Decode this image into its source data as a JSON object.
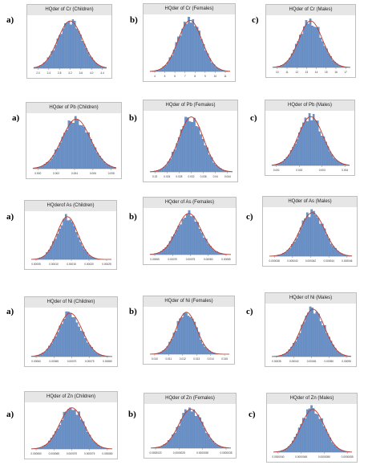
{
  "chart_data": [
    {
      "letter": "a)",
      "title": "HQder of Cr (Children)",
      "type": "bar",
      "ticks": [
        "2.0",
        "2.4",
        "2.8",
        "3.2",
        "3.6",
        "4.0",
        "4.4"
      ],
      "peak": 0.5,
      "spread": 0.17
    },
    {
      "letter": "b)",
      "title": "HQder of Cr (Females)",
      "type": "bar",
      "ticks": [
        "4",
        "5",
        "6",
        "7",
        "8",
        "9",
        "10",
        "11"
      ],
      "peak": 0.5,
      "spread": 0.15
    },
    {
      "letter": "c)",
      "title": "HQder of Cr (Males)",
      "type": "bar",
      "ticks": [
        "10",
        "11",
        "12",
        "13",
        "14",
        "15",
        "16",
        "17"
      ],
      "peak": 0.49,
      "spread": 0.15
    },
    {
      "letter": "a)",
      "title": "HQder of Pb (Children)",
      "type": "bar",
      "ticks": [
        "0.000",
        "0.002",
        "0.004",
        "0.006",
        "0.008"
      ],
      "peak": 0.52,
      "spread": 0.17
    },
    {
      "letter": "b)",
      "title": "HQder of Pb (Females)",
      "type": "bar",
      "ticks": [
        "0.02",
        "0.024",
        "0.028",
        "0.032",
        "0.036",
        "0.04",
        "0.044"
      ],
      "peak": 0.5,
      "spread": 0.15
    },
    {
      "letter": "c)",
      "title": "HQder of Pb (Males)",
      "type": "bar",
      "ticks": [
        "0.001",
        "0.002",
        "0.003",
        "0.004"
      ],
      "peak": 0.5,
      "spread": 0.16
    },
    {
      "letter": "a)",
      "title": "HQderof As (Children)",
      "type": "bar",
      "ticks": [
        "0.00005",
        "0.00010",
        "0.00015",
        "0.00020",
        "0.00025"
      ],
      "peak": 0.45,
      "spread": 0.13
    },
    {
      "letter": "b)",
      "title": "HQder of As (Females)",
      "type": "bar",
      "ticks": [
        "0.00065",
        "0.00070",
        "0.00075",
        "0.00080",
        "0.00085"
      ],
      "peak": 0.48,
      "spread": 0.15
    },
    {
      "letter": "c)",
      "title": "HQder of As (Males)",
      "type": "bar",
      "ticks": [
        "0.000038",
        "0.000040",
        "0.000042",
        "0.000044",
        "0.000046"
      ],
      "peak": 0.52,
      "spread": 0.15
    },
    {
      "letter": "a)",
      "title": "HQder of Ni (Children)",
      "type": "bar",
      "ticks": [
        "0.00060",
        "0.00065",
        "0.00070",
        "0.00075",
        "0.00080"
      ],
      "peak": 0.48,
      "spread": 0.15
    },
    {
      "letter": "b)",
      "title": "HQder of Ni (Females)",
      "type": "bar",
      "ticks": [
        "0.010",
        "0.011",
        "0.012",
        "0.013",
        "0.014",
        "0.015"
      ],
      "peak": 0.46,
      "spread": 0.13
    },
    {
      "letter": "c)",
      "title": "HQder of Ni (Males)",
      "type": "bar",
      "ticks": [
        "0.00035",
        "0.00040",
        "0.00045",
        "0.00050",
        "0.00055"
      ],
      "peak": 0.52,
      "spread": 0.15
    },
    {
      "letter": "a)",
      "title": "HQder of Zn (Children)",
      "type": "bar",
      "ticks": [
        "0.000060",
        "0.000065",
        "0.000070",
        "0.000075",
        "0.000080"
      ],
      "peak": 0.5,
      "spread": 0.15
    },
    {
      "letter": "b)",
      "title": "HQder of Zn (Females)",
      "type": "bar",
      "ticks": [
        "0.0000020",
        "0.0000025",
        "0.0000030",
        "0.0000035"
      ],
      "peak": 0.5,
      "spread": 0.15
    },
    {
      "letter": "c)",
      "title": "HQder of Zn (Males)",
      "type": "bar",
      "ticks": [
        "0.0000040",
        "0.0000045",
        "0.0000050",
        "0.0000055"
      ],
      "peak": 0.5,
      "spread": 0.15
    }
  ],
  "colors": {
    "bar_fill": "#6b93c9",
    "bar_stroke": "#3f66a0",
    "fit_curve": "#c0392b",
    "axis": "#888888"
  }
}
